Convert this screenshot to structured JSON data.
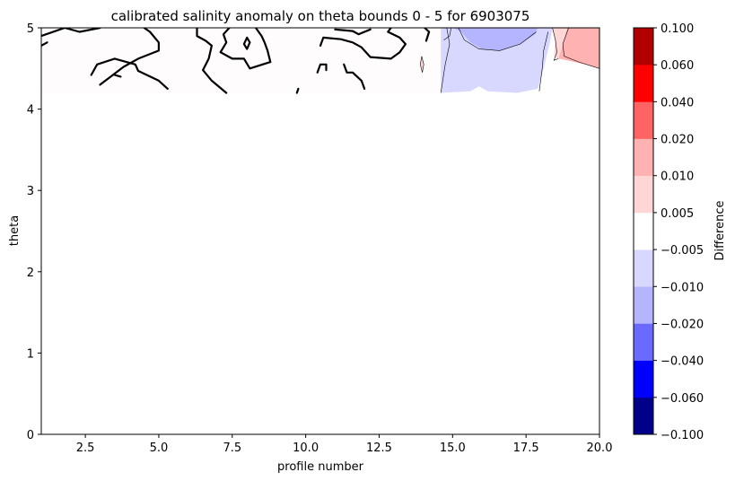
{
  "chart_data": {
    "type": "contourf",
    "title": "calibrated salinity anomaly on theta bounds 0 - 5 for 6903075",
    "xlabel": "profile number",
    "ylabel": "theta",
    "xlim": [
      1,
      20
    ],
    "ylim": [
      0,
      5
    ],
    "xticks": [
      2.5,
      5.0,
      7.5,
      10.0,
      12.5,
      15.0,
      17.5,
      20.0
    ],
    "xtick_labels": [
      "2.5",
      "5.0",
      "7.5",
      "10.0",
      "12.5",
      "15.0",
      "17.5",
      "20.0"
    ],
    "yticks": [
      0,
      1,
      2,
      3,
      4,
      5
    ],
    "ytick_labels": [
      "0",
      "1",
      "2",
      "3",
      "4",
      "5"
    ],
    "grid": false,
    "colorbar": {
      "label": "Difference",
      "levels": [
        -0.1,
        -0.06,
        -0.04,
        -0.02,
        -0.01,
        -0.005,
        0.005,
        0.01,
        0.02,
        0.04,
        0.06,
        0.1
      ],
      "tick_labels": [
        "−0.100",
        "−0.060",
        "−0.040",
        "−0.020",
        "−0.010",
        "−0.005",
        "0.005",
        "0.010",
        "0.020",
        "0.040",
        "0.060",
        "0.100"
      ],
      "colors": [
        "#00008b",
        "#0000ff",
        "#6a6aff",
        "#b4b4ff",
        "#d8d8ff",
        "#ffffff",
        "#ffd6d6",
        "#ffb2b2",
        "#ff6464",
        "#ff0000",
        "#b20000"
      ]
    },
    "regions": [
      {
        "class": "near-zero",
        "value_range": [
          -0.005,
          0.005
        ],
        "color": "#fffcfd",
        "points": [
          [
            1,
            5
          ],
          [
            14.6,
            5
          ],
          [
            14.6,
            4.2
          ],
          [
            1,
            4.2
          ]
        ]
      },
      {
        "class": "negative",
        "value_range": [
          -0.01,
          -0.005
        ],
        "color": "#d8d8ff",
        "points": [
          [
            14.6,
            5
          ],
          [
            18.4,
            5
          ],
          [
            18.3,
            4.8
          ],
          [
            18.1,
            4.5
          ],
          [
            17.9,
            4.25
          ],
          [
            17.2,
            4.2
          ],
          [
            16.2,
            4.22
          ],
          [
            15.9,
            4.28
          ],
          [
            15.6,
            4.22
          ],
          [
            14.6,
            4.2
          ]
        ]
      },
      {
        "class": "negative",
        "value_range": [
          -0.02,
          -0.01
        ],
        "color": "#b4b4ff",
        "points": [
          [
            15,
            5
          ],
          [
            17.9,
            5
          ],
          [
            17.8,
            4.92
          ],
          [
            17.3,
            4.8
          ],
          [
            16.6,
            4.72
          ],
          [
            16,
            4.74
          ],
          [
            15.6,
            4.82
          ],
          [
            15.3,
            4.95
          ]
        ]
      },
      {
        "class": "positive",
        "value_range": [
          0.01,
          0.02
        ],
        "color": "#ffb2b2",
        "points": [
          [
            18.9,
            5
          ],
          [
            20,
            5
          ],
          [
            20,
            4.5
          ],
          [
            19.5,
            4.55
          ],
          [
            18.9,
            4.6
          ],
          [
            18.6,
            4.62
          ],
          [
            18.75,
            4.8
          ]
        ]
      },
      {
        "class": "positive",
        "value_range": [
          0.005,
          0.01
        ],
        "color": "#ffd6d6",
        "points": [
          [
            18.4,
            5
          ],
          [
            18.9,
            5
          ],
          [
            18.75,
            4.8
          ],
          [
            18.6,
            4.62
          ],
          [
            18.45,
            4.65
          ],
          [
            18.5,
            4.85
          ]
        ]
      },
      {
        "class": "positive",
        "value_range": [
          0.005,
          0.01
        ],
        "color": "#ffd6d6",
        "points": [
          [
            13.95,
            4.65
          ],
          [
            14.02,
            4.55
          ],
          [
            13.97,
            4.45
          ],
          [
            13.9,
            4.55
          ]
        ]
      }
    ],
    "zero_contours": [
      [
        [
          1,
          4.9
        ],
        [
          1.8,
          5
        ],
        [
          2.3,
          4.95
        ],
        [
          3,
          5
        ]
      ],
      [
        [
          1,
          4.78
        ],
        [
          1.2,
          4.82
        ]
      ],
      [
        [
          4.5,
          5
        ],
        [
          4.7,
          4.95
        ],
        [
          5,
          4.82
        ],
        [
          5,
          4.72
        ],
        [
          4.3,
          4.62
        ],
        [
          3.8,
          4.52
        ],
        [
          3,
          4.3
        ]
      ],
      [
        [
          2.7,
          4.42
        ],
        [
          2.9,
          4.55
        ],
        [
          3.5,
          4.62
        ],
        [
          4.2,
          4.55
        ],
        [
          4.3,
          4.47
        ],
        [
          5,
          4.35
        ],
        [
          5.3,
          4.25
        ]
      ],
      [
        [
          3.5,
          4.42
        ],
        [
          3.7,
          4.4
        ]
      ],
      [
        [
          6.3,
          5
        ],
        [
          6.3,
          4.9
        ],
        [
          6.6,
          4.84
        ],
        [
          6.8,
          4.78
        ],
        [
          6.7,
          4.62
        ],
        [
          6.5,
          4.48
        ],
        [
          6.8,
          4.35
        ],
        [
          7.3,
          4.2
        ]
      ],
      [
        [
          7.4,
          5
        ],
        [
          7.2,
          4.92
        ],
        [
          7.3,
          4.82
        ],
        [
          7.1,
          4.7
        ],
        [
          7.5,
          4.62
        ],
        [
          7.9,
          4.62
        ],
        [
          8.1,
          4.5
        ],
        [
          8.8,
          4.58
        ],
        [
          8.7,
          4.72
        ],
        [
          8.6,
          4.82
        ],
        [
          8.5,
          4.9
        ],
        [
          8.3,
          5
        ]
      ],
      [
        [
          7.9,
          4.8
        ],
        [
          8,
          4.88
        ],
        [
          8.1,
          4.82
        ],
        [
          8,
          4.74
        ],
        [
          7.9,
          4.8
        ]
      ],
      [
        [
          10.5,
          4.78
        ],
        [
          10.6,
          4.88
        ],
        [
          11.2,
          4.86
        ],
        [
          11.6,
          4.82
        ],
        [
          11.9,
          4.76
        ],
        [
          12.2,
          4.64
        ],
        [
          12.9,
          4.62
        ],
        [
          13.2,
          4.7
        ],
        [
          13.4,
          4.8
        ],
        [
          13.2,
          4.88
        ],
        [
          12.8,
          4.95
        ],
        [
          12.9,
          5
        ]
      ],
      [
        [
          11.0,
          4.98
        ],
        [
          11.6,
          4.96
        ],
        [
          11.8,
          4.92
        ],
        [
          12.0,
          4.95
        ],
        [
          12.2,
          4.98
        ]
      ],
      [
        [
          10.4,
          4.45
        ],
        [
          10.5,
          4.55
        ],
        [
          10.7,
          4.55
        ],
        [
          10.7,
          4.48
        ]
      ],
      [
        [
          11.3,
          4.55
        ],
        [
          11.4,
          4.45
        ],
        [
          11.6,
          4.45
        ],
        [
          11.9,
          4.35
        ],
        [
          12.0,
          4.25
        ]
      ],
      [
        [
          14.05,
          5
        ],
        [
          14.2,
          4.95
        ],
        [
          14.1,
          4.84
        ]
      ],
      [
        [
          9.7,
          4.2
        ],
        [
          9.75,
          4.25
        ]
      ]
    ],
    "thin_contours": [
      [
        [
          14.6,
          4.2
        ],
        [
          14.75,
          4.55
        ],
        [
          14.9,
          4.8
        ],
        [
          14.8,
          5
        ]
      ],
      [
        [
          14.7,
          4.85
        ],
        [
          14.9,
          4.9
        ],
        [
          14.95,
          5
        ]
      ],
      [
        [
          15.2,
          5
        ],
        [
          15.4,
          4.85
        ],
        [
          15.9,
          4.74
        ],
        [
          16.6,
          4.72
        ],
        [
          17.3,
          4.8
        ],
        [
          17.85,
          4.95
        ]
      ],
      [
        [
          18.25,
          4.95
        ],
        [
          18.1,
          4.72
        ],
        [
          18.05,
          4.5
        ],
        [
          17.95,
          4.22
        ]
      ],
      [
        [
          18.4,
          5
        ],
        [
          18.5,
          4.85
        ],
        [
          18.55,
          4.7
        ],
        [
          18.45,
          4.6
        ],
        [
          18.6,
          4.62
        ]
      ],
      [
        [
          18.95,
          5
        ],
        [
          18.75,
          4.8
        ],
        [
          18.8,
          4.65
        ],
        [
          19.3,
          4.58
        ],
        [
          20,
          4.5
        ]
      ]
    ]
  }
}
